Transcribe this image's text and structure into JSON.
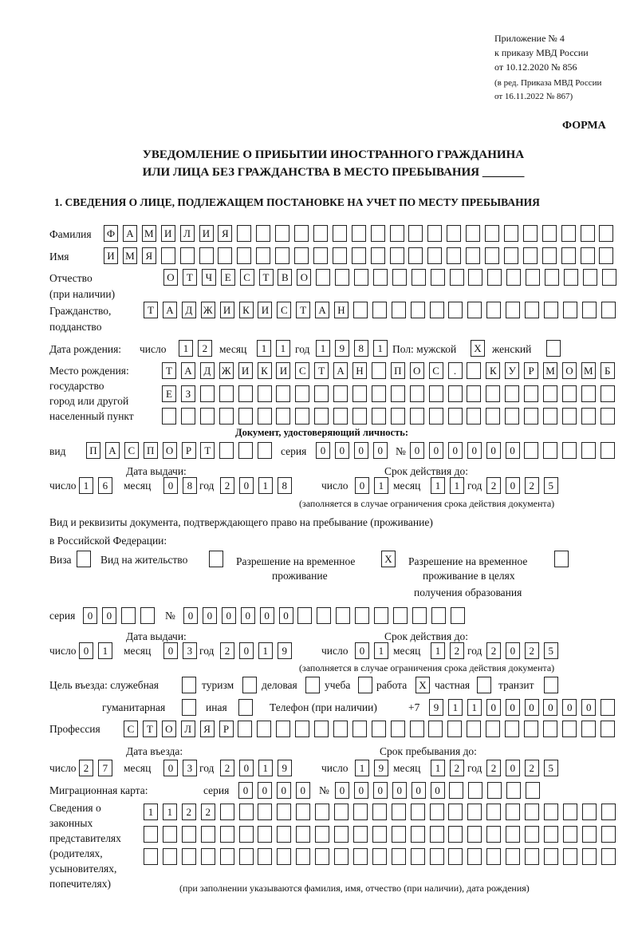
{
  "header": {
    "appendix_lines": [
      "Приложение № 4",
      "к приказу МВД России",
      "от 10.12.2020 № 856"
    ],
    "edition_lines": [
      "(в ред. Приказа МВД России",
      "от 16.11.2022 № 867)"
    ],
    "form_label": "ФОРМА",
    "title_line1": "УВЕДОМЛЕНИЕ О ПРИБЫТИИ ИНОСТРАННОГО ГРАЖДАНИНА",
    "title_line2": "ИЛИ ЛИЦА БЕЗ ГРАЖДАНСТВА В МЕСТО ПРЕБЫВАНИЯ _______",
    "section1": "1. СВЕДЕНИЯ О ЛИЦЕ, ПОДЛЕЖАЩЕМ ПОСТАНОВКЕ НА УЧЕТ ПО МЕСТУ ПРЕБЫВАНИЯ"
  },
  "labels": {
    "surname": "Фамилия",
    "name": "Имя",
    "patronymic": "Отчество",
    "patronymic_note": "(при наличии)",
    "citizenship1": "Гражданство,",
    "citizenship2": "подданство",
    "birth_date": "Дата рождения:",
    "day": "число",
    "month": "месяц",
    "year": "год",
    "sex": "Пол: мужской",
    "female": "женский",
    "birthplace": [
      "Место рождения:",
      "государство",
      "город или другой",
      "населенный пункт"
    ],
    "id_doc": "Документ, удостоверяющий личность:",
    "kind": "вид",
    "series": "серия",
    "number": "№",
    "issue_date": "Дата выдачи:",
    "valid_until": "Срок действия до:",
    "validity_note": "(заполняется в случае ограничения срока действия документа)",
    "stay_doc1": "Вид и реквизиты документа, подтверждающего право на пребывание (проживание)",
    "stay_doc2": "в Российской Федерации:",
    "visa": "Виза",
    "residence": "Вид на жительство",
    "trp": [
      "Разрешение на временное",
      "проживание"
    ],
    "trp_edu": [
      "Разрешение на временное",
      "проживание в целях",
      "получения образования"
    ],
    "purpose": "Цель въезда: служебная",
    "tourism": "туризм",
    "business": "деловая",
    "study": "учеба",
    "work": "работа",
    "private": "частная",
    "transit": "транзит",
    "humanitarian": "гуманитарная",
    "other": "иная",
    "phone": "Телефон (при наличии)",
    "phone_prefix": "+7",
    "profession": "Профессия",
    "entry_date": "Дата въезда:",
    "stay_until": "Срок пребывания до:",
    "migration_card": "Миграционная карта:",
    "legal_reps": [
      "Сведения о",
      "законных",
      "представителях",
      "(родителях,",
      "усыновителях,",
      "попечителях)"
    ],
    "legal_reps_note": "(при заполнении указываются фамилия, имя, отчество (при наличии), дата рождения)"
  },
  "person": {
    "surname": "ФАМИЛИЯ",
    "name": "ИМЯ",
    "patronymic": "ОТЧЕСТВО",
    "citizenship": "ТАДЖИКИСТАН",
    "birth_date": {
      "day": "12",
      "month": "11",
      "year": "1981"
    },
    "sex_male": "X",
    "sex_female": "",
    "birthplace": [
      "ТАДЖИКИСТАН ПОС. КУРМОМБ",
      "ЕЗ",
      ""
    ]
  },
  "id_document": {
    "kind": "ПАСПОРТ",
    "series": "0000",
    "number": "000000",
    "issue_date": {
      "day": "16",
      "month": "08",
      "year": "2018"
    },
    "valid_until": {
      "day": "01",
      "month": "11",
      "year": "2025"
    }
  },
  "stay_document": {
    "visa": "",
    "residence": "",
    "trp": "X",
    "trp_edu": "",
    "series": "00",
    "number": "000000",
    "issue_date": {
      "day": "01",
      "month": "03",
      "year": "2019"
    },
    "valid_until": {
      "day": "01",
      "month": "12",
      "year": "2025"
    }
  },
  "purpose": {
    "official": "",
    "tourism": "",
    "business": "",
    "study": "",
    "work": "X",
    "private": "",
    "transit": "",
    "humanitarian": "",
    "other": ""
  },
  "phone": "911000000",
  "profession": "СТОЛЯР",
  "entry_date": {
    "day": "27",
    "month": "03",
    "year": "2019"
  },
  "stay_until": {
    "day": "19",
    "month": "12",
    "year": "2025"
  },
  "migration_card": {
    "series": "0000",
    "number": "000000"
  },
  "legal_reps": [
    "1122",
    "",
    ""
  ]
}
